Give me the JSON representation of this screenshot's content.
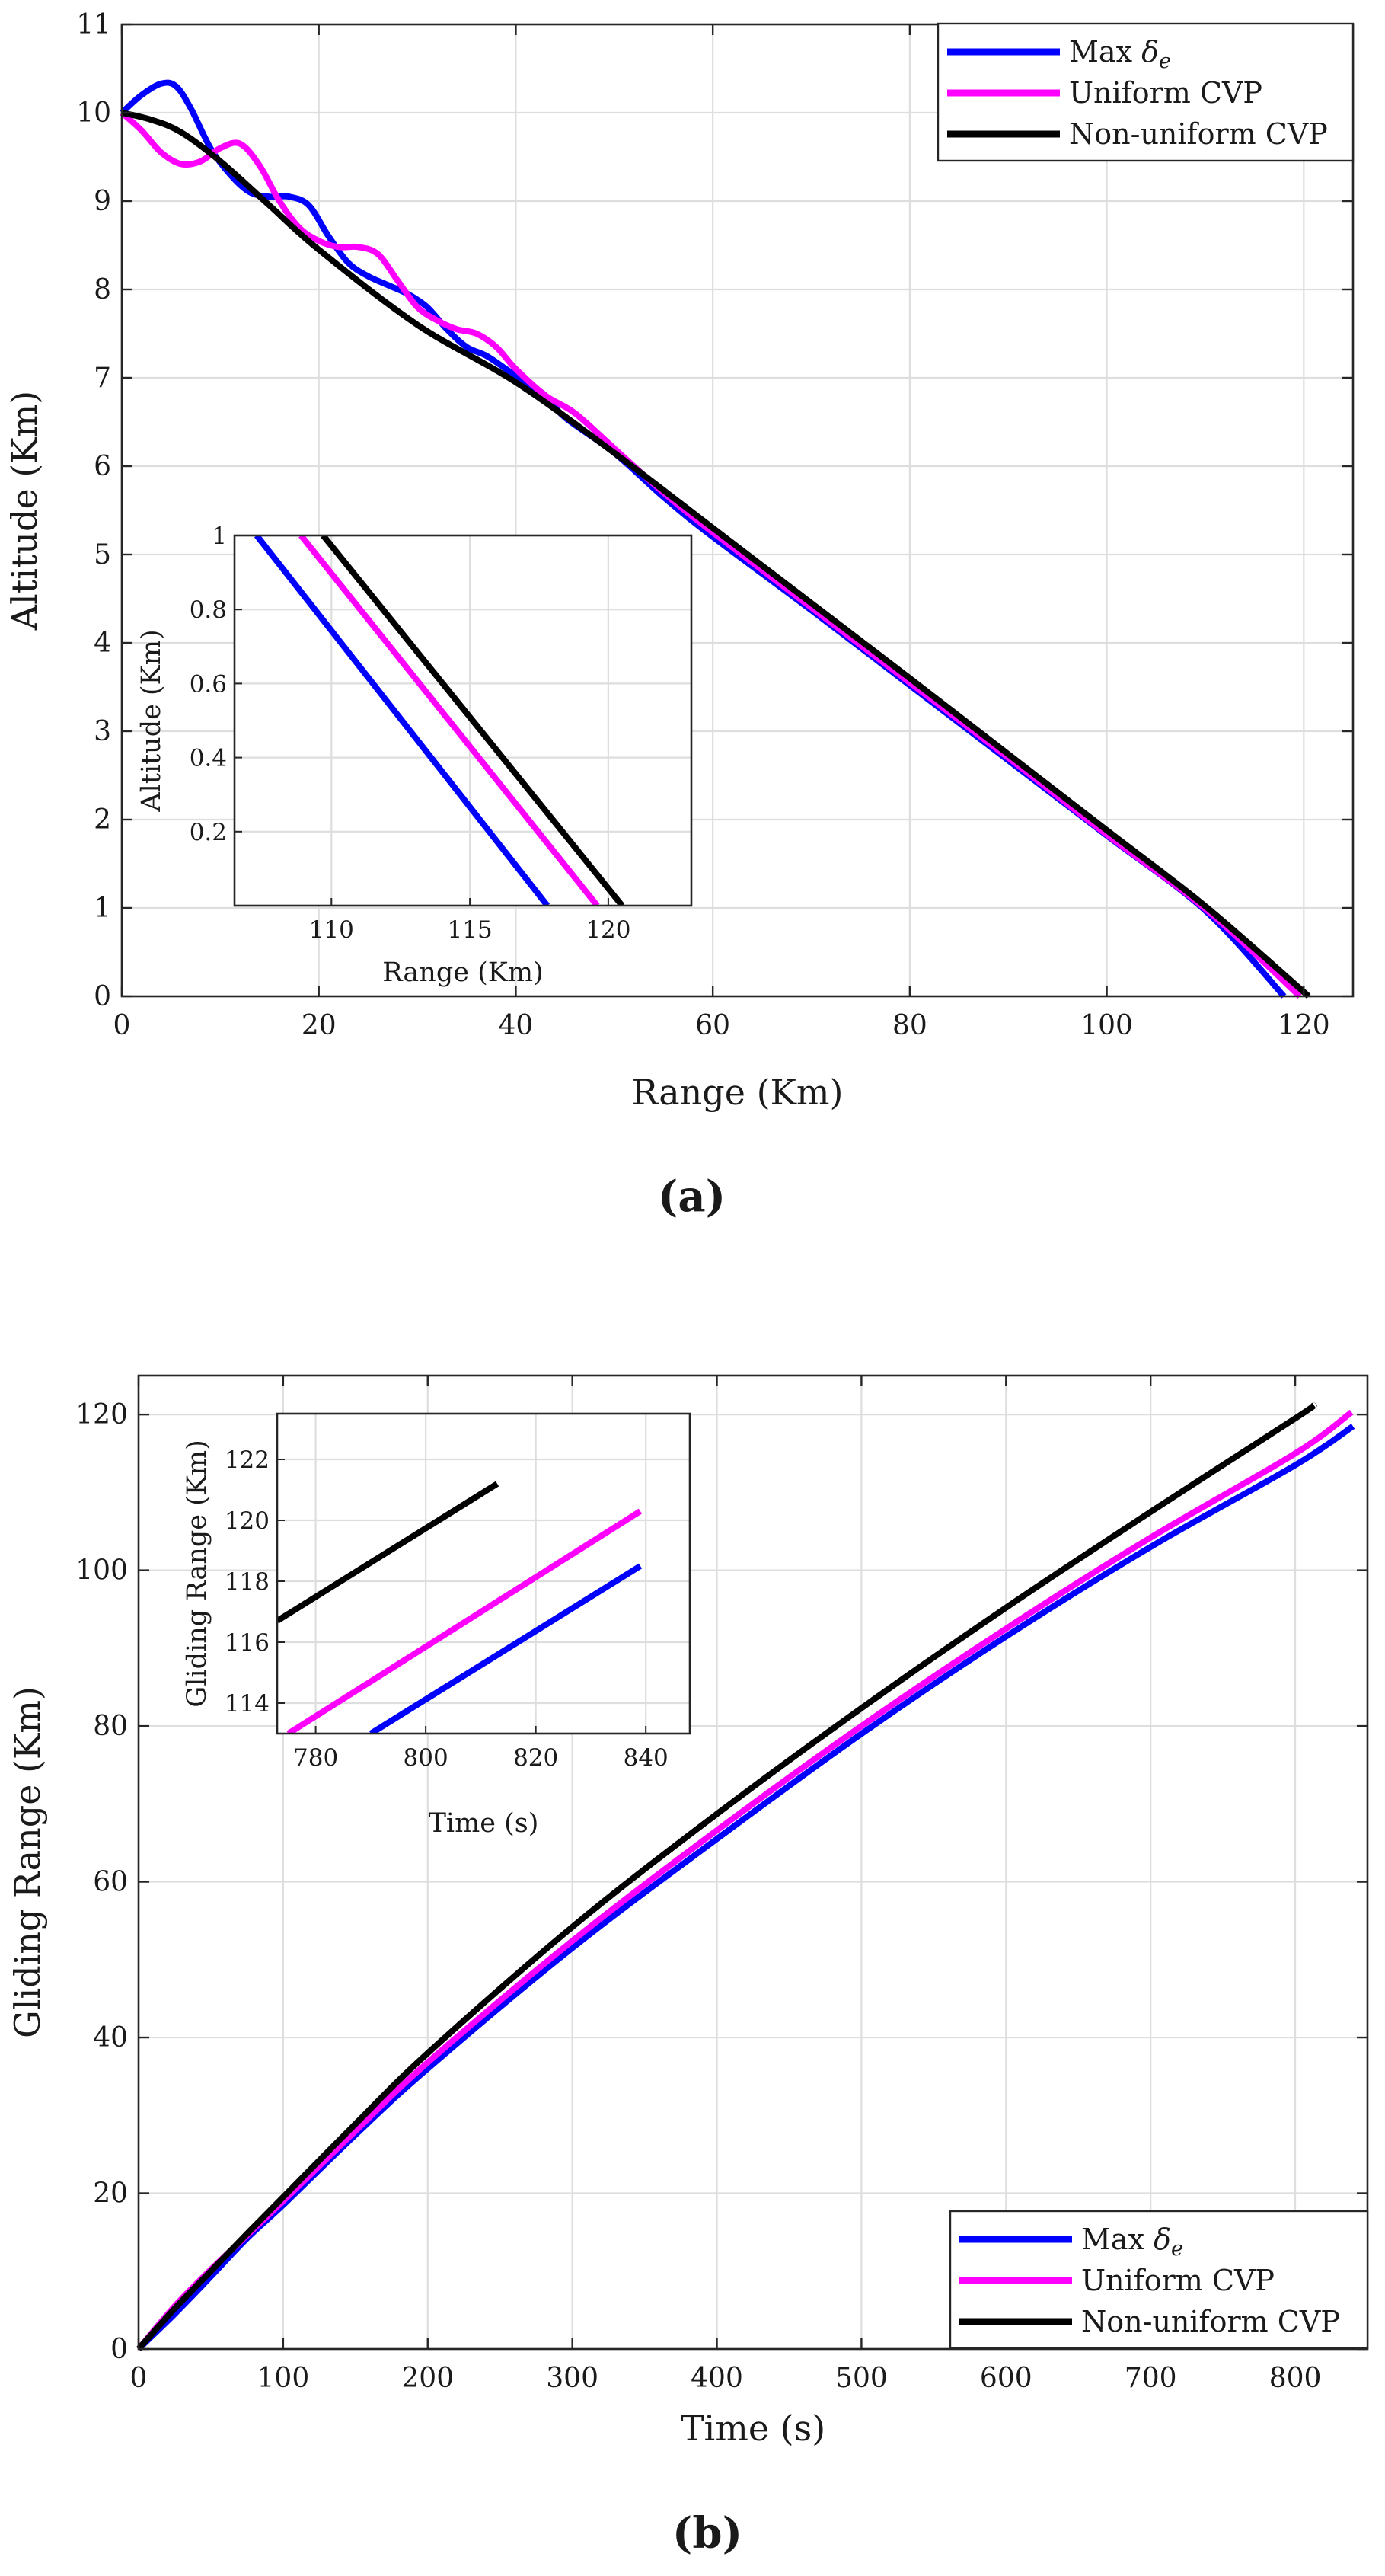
{
  "chart_data": [
    {
      "id": "a",
      "type": "line",
      "panel_label": "(a)",
      "title": "",
      "xlabel": "Range (Km)",
      "ylabel": "Altitude (Km)",
      "xlim": [
        0,
        125
      ],
      "ylim": [
        0,
        11
      ],
      "xticks": [
        0,
        20,
        40,
        60,
        80,
        100,
        120
      ],
      "yticks": [
        0,
        1,
        2,
        3,
        4,
        5,
        6,
        7,
        8,
        9,
        10,
        11
      ],
      "grid": true,
      "legend": {
        "placement": "top-right",
        "entries": [
          "Max δe",
          "Uniform CVP",
          "Non-uniform CVP"
        ]
      },
      "series": [
        {
          "name": "Max δe",
          "color": "#0000ff",
          "x": [
            0,
            2,
            4,
            5.5,
            7,
            9,
            11,
            13,
            15,
            17,
            19,
            21,
            23,
            25,
            27,
            29,
            31,
            33,
            35,
            37,
            39,
            41,
            43,
            45,
            50,
            55,
            60,
            70,
            80,
            90,
            100,
            110,
            118
          ],
          "y": [
            10,
            10.2,
            10.33,
            10.3,
            10.05,
            9.6,
            9.3,
            9.1,
            9.05,
            9.05,
            8.95,
            8.6,
            8.3,
            8.15,
            8.05,
            7.95,
            7.8,
            7.55,
            7.35,
            7.25,
            7.1,
            6.95,
            6.8,
            6.55,
            6.15,
            5.65,
            5.2,
            4.37,
            3.52,
            2.67,
            1.82,
            0.97,
            0.0
          ]
        },
        {
          "name": "Uniform CVP",
          "color": "#ff00ff",
          "x": [
            0,
            2,
            4,
            6,
            8,
            10,
            12,
            14,
            16,
            18,
            20,
            22,
            24,
            26,
            28,
            30,
            32,
            34,
            36,
            38,
            40,
            43,
            46,
            50,
            55,
            60,
            70,
            80,
            90,
            100,
            110,
            119.6
          ],
          "y": [
            10,
            9.8,
            9.55,
            9.42,
            9.45,
            9.6,
            9.65,
            9.4,
            9.0,
            8.7,
            8.55,
            8.48,
            8.48,
            8.4,
            8.1,
            7.8,
            7.65,
            7.55,
            7.5,
            7.35,
            7.1,
            6.8,
            6.6,
            6.2,
            5.7,
            5.25,
            4.4,
            3.55,
            2.7,
            1.83,
            0.99,
            0.0
          ]
        },
        {
          "name": "Non-uniform CVP",
          "color": "#000000",
          "x": [
            0,
            3,
            6,
            10,
            15,
            20,
            30,
            40,
            50,
            60,
            70,
            80,
            90,
            100,
            110,
            120.5
          ],
          "y": [
            10,
            9.92,
            9.78,
            9.45,
            8.95,
            8.45,
            7.6,
            6.95,
            6.15,
            5.3,
            4.45,
            3.6,
            2.74,
            1.88,
            1.02,
            0.0
          ]
        }
      ],
      "inset": {
        "xlabel": "Range (Km)",
        "ylabel": "Altitude (Km)",
        "xlim": [
          106.5,
          123
        ],
        "ylim": [
          0.0,
          1.0
        ],
        "xticks": [
          110,
          115,
          120
        ],
        "ytick_values": [
          0.2,
          0.4,
          0.6,
          0.8,
          1.0
        ],
        "ytick_labels": [
          "0.2",
          "0.4",
          "0.6",
          "0.8",
          "1"
        ],
        "series": [
          {
            "name": "Max δe",
            "x": [
              107.3,
              117.8
            ],
            "y": [
              1.0,
              0.0
            ]
          },
          {
            "name": "Uniform CVP",
            "x": [
              108.9,
              119.6
            ],
            "y": [
              1.0,
              0.0
            ]
          },
          {
            "name": "Non-uniform CVP",
            "x": [
              109.7,
              120.5
            ],
            "y": [
              1.0,
              0.0
            ]
          }
        ]
      }
    },
    {
      "id": "b",
      "type": "line",
      "panel_label": "(b)",
      "title": "",
      "xlabel": "Time (s)",
      "ylabel": "Gliding Range (Km)",
      "xlim": [
        0,
        850
      ],
      "ylim": [
        0,
        125
      ],
      "xticks": [
        0,
        100,
        200,
        300,
        400,
        500,
        600,
        700,
        800
      ],
      "yticks": [
        0,
        20,
        40,
        60,
        80,
        100,
        120
      ],
      "grid": true,
      "legend": {
        "placement": "bottom-right",
        "entries": [
          "Max δe",
          "Uniform CVP",
          "Non-uniform CVP"
        ]
      },
      "series": [
        {
          "name": "Max δe",
          "color": "#0000ff",
          "x": [
            0,
            25,
            50,
            75,
            100,
            150,
            200,
            300,
            400,
            500,
            600,
            700,
            800,
            840
          ],
          "y": [
            0,
            4.5,
            9.3,
            14.2,
            18.5,
            27.5,
            36.0,
            51.5,
            65.5,
            79.0,
            91.5,
            103.0,
            113.5,
            118.5
          ]
        },
        {
          "name": "Uniform CVP",
          "color": "#ff00ff",
          "x": [
            0,
            25,
            50,
            75,
            100,
            150,
            200,
            300,
            400,
            500,
            600,
            700,
            800,
            839
          ],
          "y": [
            0,
            5.5,
            10.2,
            14.6,
            19.0,
            28.0,
            36.8,
            52.4,
            66.6,
            80.0,
            92.5,
            104.2,
            115.0,
            120.3
          ]
        },
        {
          "name": "Non-uniform CVP",
          "color": "#000000",
          "x": [
            0,
            25,
            50,
            75,
            100,
            150,
            200,
            300,
            400,
            500,
            600,
            700,
            800,
            813
          ],
          "y": [
            0,
            5.2,
            10.0,
            14.8,
            19.5,
            28.9,
            38.0,
            54.2,
            68.7,
            82.3,
            95.2,
            107.5,
            119.5,
            121.2
          ]
        }
      ],
      "inset": {
        "xlabel": "Time (s)",
        "ylabel": "Gliding Range (Km)",
        "xlim": [
          773,
          848
        ],
        "ylim": [
          113,
          123.5
        ],
        "xticks": [
          780,
          800,
          820,
          840
        ],
        "ytick_values": [
          114,
          116,
          118,
          120,
          122
        ],
        "ytick_labels": [
          "114",
          "116",
          "118",
          "120",
          "122"
        ],
        "series": [
          {
            "name": "Max δe",
            "x": [
              790,
              839
            ],
            "y": [
              113.0,
              118.5
            ]
          },
          {
            "name": "Uniform CVP",
            "x": [
              775,
              839
            ],
            "y": [
              113.0,
              120.3
            ]
          },
          {
            "name": "Non-uniform CVP",
            "x": [
              773,
              813
            ],
            "y": [
              116.7,
              121.2
            ]
          }
        ]
      }
    }
  ]
}
